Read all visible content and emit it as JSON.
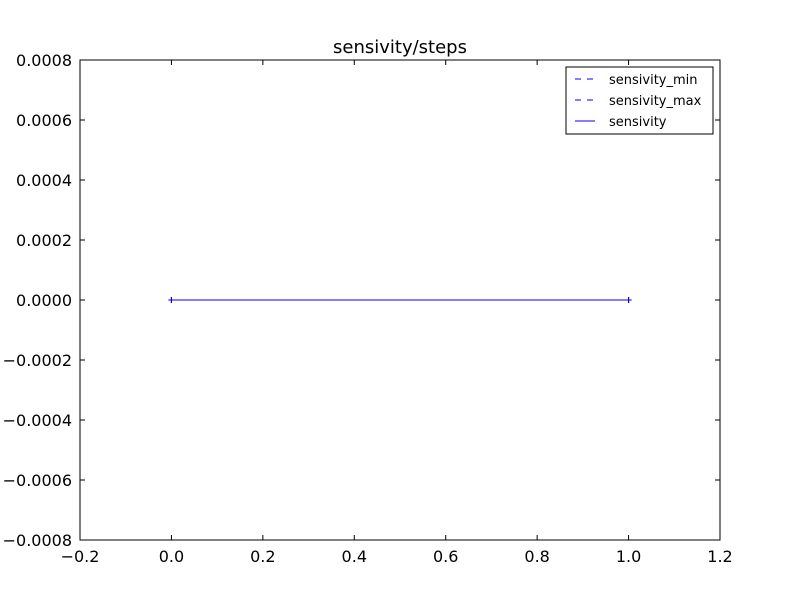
{
  "chart_data": {
    "type": "line",
    "title": "sensivity/steps",
    "xlabel": "",
    "ylabel": "",
    "xlim": [
      -0.2,
      1.2
    ],
    "ylim": [
      -0.0008,
      0.0008
    ],
    "x_ticks": [
      -0.2,
      0.0,
      0.2,
      0.4,
      0.6,
      0.8,
      1.0,
      1.2
    ],
    "x_tick_labels": [
      "−0.2",
      "0.0",
      "0.2",
      "0.4",
      "0.6",
      "0.8",
      "1.0",
      "1.2"
    ],
    "y_ticks": [
      -0.0008,
      -0.0006,
      -0.0004,
      -0.0002,
      0.0,
      0.0002,
      0.0004,
      0.0006,
      0.0008
    ],
    "y_tick_labels": [
      "−0.0008",
      "−0.0006",
      "−0.0004",
      "−0.0002",
      "0.0000",
      "0.0002",
      "0.0004",
      "0.0006",
      "0.0008"
    ],
    "grid": false,
    "legend_position": "top-right",
    "series": [
      {
        "name": "sensivity_min",
        "x": [
          0.0,
          1.0
        ],
        "y": [
          0.0,
          0.0
        ],
        "style": "dashed",
        "color": "#0000ff",
        "marker": "+"
      },
      {
        "name": "sensivity_max",
        "x": [
          0.0,
          1.0
        ],
        "y": [
          0.0,
          0.0
        ],
        "style": "dashed",
        "color": "#0000ff",
        "marker": "+"
      },
      {
        "name": "sensivity",
        "x": [
          0.0,
          1.0
        ],
        "y": [
          0.0,
          0.0
        ],
        "style": "solid",
        "color": "#0000ff",
        "marker": "+"
      }
    ]
  }
}
